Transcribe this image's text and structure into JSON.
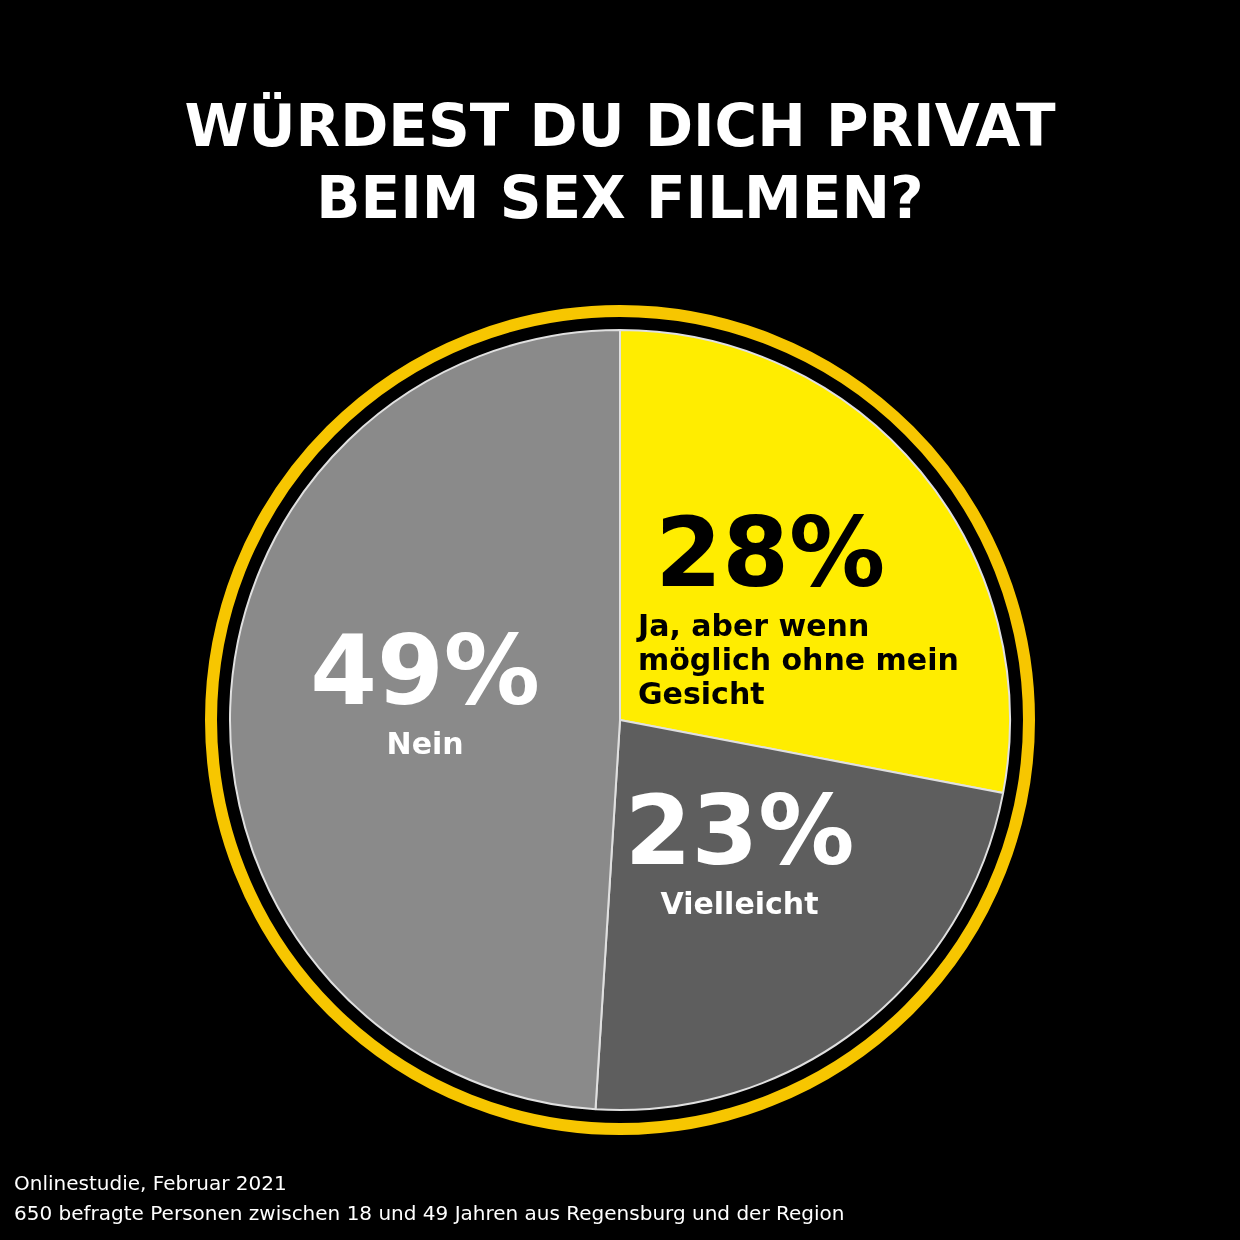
{
  "chart_data": {
    "type": "pie",
    "title": "WÜRDEST DU DICH PRIVAT BEIM SEX FILMEN?",
    "categories": [
      "Ja, aber wenn möglich ohne mein Gesicht",
      "Vielleicht",
      "Nein"
    ],
    "values": [
      28,
      23,
      49
    ],
    "colors": [
      "#ffed00",
      "#5e5e5e",
      "#8a8a8a"
    ],
    "value_labels": [
      "28%",
      "23%",
      "49%"
    ],
    "legend": false,
    "annotations": [
      "Onlinestudie, Februar 2021",
      "650 befragte Personen zwischen 18 und 49 Jahren aus Regensburg und der Region"
    ]
  }
}
